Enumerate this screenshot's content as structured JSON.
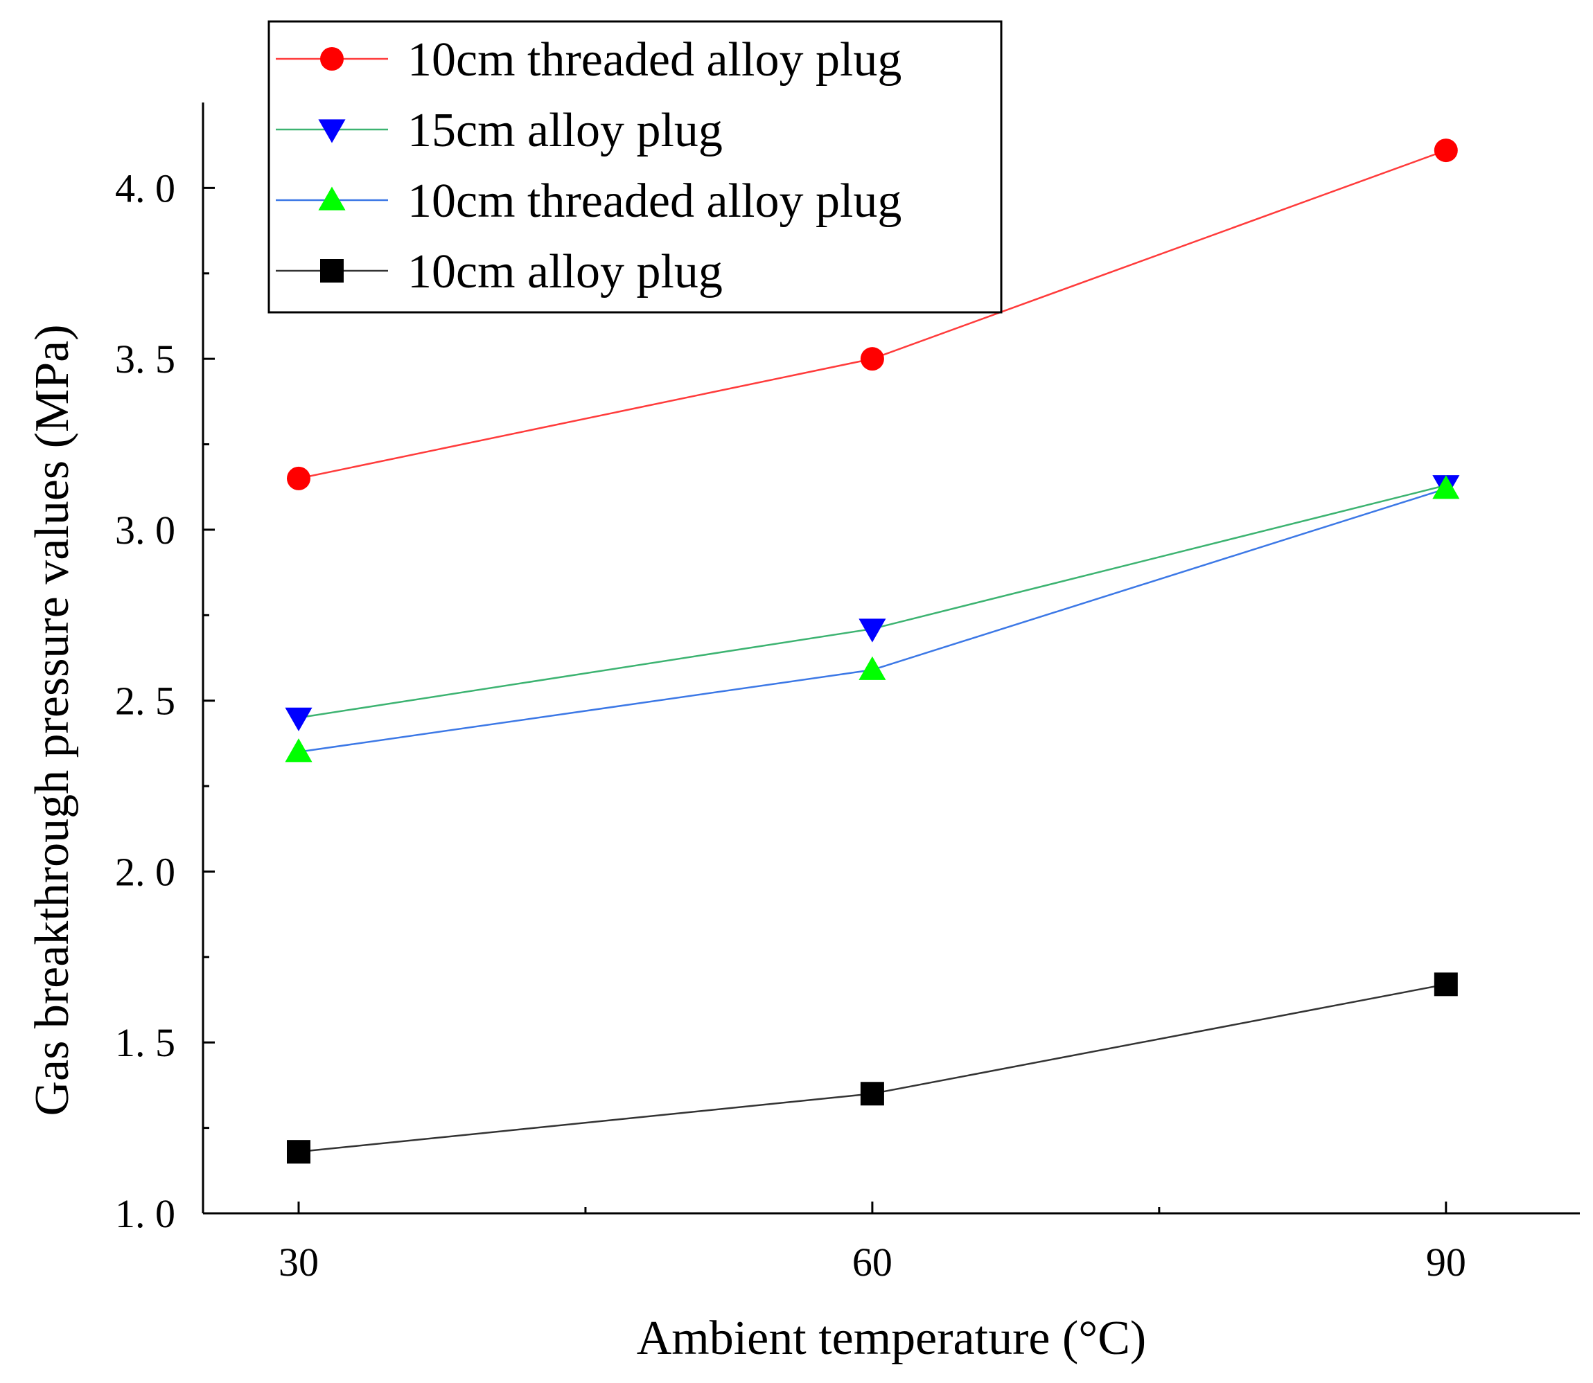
{
  "chart_data": {
    "type": "line",
    "title": "",
    "xlabel": "Ambient temperature (°C)",
    "ylabel": "Gas breakthrough pressure values (MPa)",
    "x": [
      30,
      60,
      90
    ],
    "xlim": [
      25,
      97
    ],
    "ylim": [
      1.0,
      4.25
    ],
    "x_ticks": [
      30,
      60,
      90
    ],
    "x_tick_labels": [
      "30",
      "60",
      "90"
    ],
    "y_ticks": [
      1.0,
      1.5,
      2.0,
      2.5,
      3.0,
      3.5,
      4.0
    ],
    "y_tick_labels": [
      "1. 0",
      "1. 5",
      "2. 0",
      "2. 5",
      "3. 0",
      "3. 5",
      "4. 0"
    ],
    "grid": false,
    "legend_position": "top-left",
    "series": [
      {
        "name": "10cm threaded alloy plug",
        "values": [
          3.15,
          3.5,
          4.11
        ],
        "line_color": "#ff3b3b",
        "marker_color": "#ff0000",
        "marker": "circle"
      },
      {
        "name": "15cm alloy plug",
        "values": [
          2.45,
          2.71,
          3.13
        ],
        "line_color": "#3cb371",
        "marker_color": "#0000ff",
        "marker": "triangle-down"
      },
      {
        "name": "10cm threaded alloy plug",
        "values": [
          2.35,
          2.59,
          3.12
        ],
        "line_color": "#3c78e6",
        "marker_color": "#00ff00",
        "marker": "triangle-up"
      },
      {
        "name": "10cm alloy plug",
        "values": [
          1.18,
          1.35,
          1.67
        ],
        "line_color": "#333333",
        "marker_color": "#000000",
        "marker": "square"
      }
    ]
  }
}
